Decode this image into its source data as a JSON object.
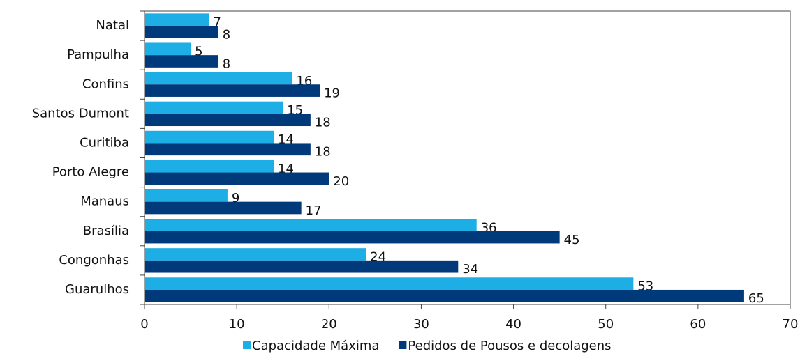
{
  "chart_data": {
    "type": "hbar",
    "categories": [
      "Natal",
      "Pampulha",
      "Confins",
      "Santos Dumont",
      "Curitiba",
      "Porto Alegre",
      "Manaus",
      "Brasília",
      "Congonhas",
      "Guarulhos"
    ],
    "series": [
      {
        "name": "Capacidade Máxima",
        "color": "#1eaee6",
        "values": [
          7,
          5,
          16,
          15,
          14,
          14,
          9,
          36,
          24,
          53
        ]
      },
      {
        "name": "Pedidos de Pousos e decolagens",
        "color": "#003a7a",
        "values": [
          8,
          8,
          19,
          18,
          18,
          20,
          17,
          45,
          34,
          65
        ]
      }
    ],
    "xlim": [
      0,
      70
    ],
    "xticks": [
      0,
      10,
      20,
      30,
      40,
      50,
      60,
      70
    ],
    "legend": "bottom"
  }
}
